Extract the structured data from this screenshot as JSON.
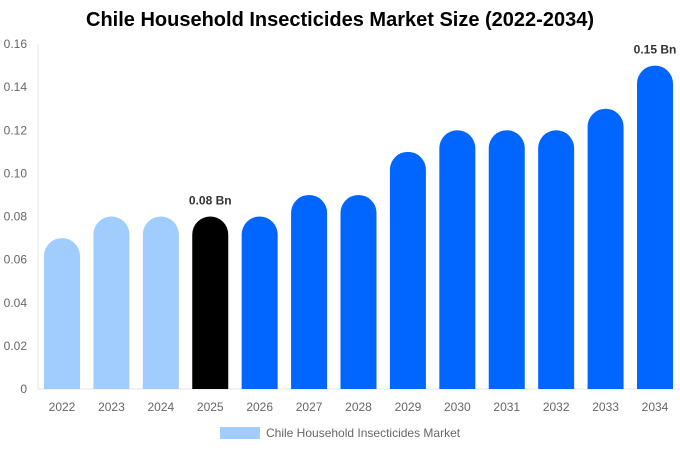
{
  "chart_data": {
    "type": "bar",
    "title": "Chile Household Insecticides Market Size (2022-2034)",
    "categories": [
      "2022",
      "2023",
      "2024",
      "2025",
      "2026",
      "2027",
      "2028",
      "2029",
      "2030",
      "2031",
      "2032",
      "2033",
      "2034"
    ],
    "series": [
      {
        "name": "Chile Household Insecticides Market",
        "values": [
          0.07,
          0.08,
          0.08,
          0.08,
          0.08,
          0.09,
          0.09,
          0.11,
          0.12,
          0.12,
          0.12,
          0.13,
          0.15
        ]
      }
    ],
    "ylim": [
      0,
      0.16
    ],
    "yticks": [
      "0",
      "0.02",
      "0.04",
      "0.06",
      "0.08",
      "0.10",
      "0.12",
      "0.14",
      "0.16"
    ],
    "data_labels": {
      "3": "0.08 Bn",
      "12": "0.15 Bn"
    },
    "bar_colors": [
      "#a0cdfd",
      "#a0cdfd",
      "#a0cdfd",
      "#000000",
      "#0066ff",
      "#0066ff",
      "#0066ff",
      "#0066ff",
      "#0066ff",
      "#0066ff",
      "#0066ff",
      "#0066ff",
      "#0066ff"
    ],
    "legend_color": "#a0cdfd",
    "legend_position": "bottom",
    "grid": false
  }
}
